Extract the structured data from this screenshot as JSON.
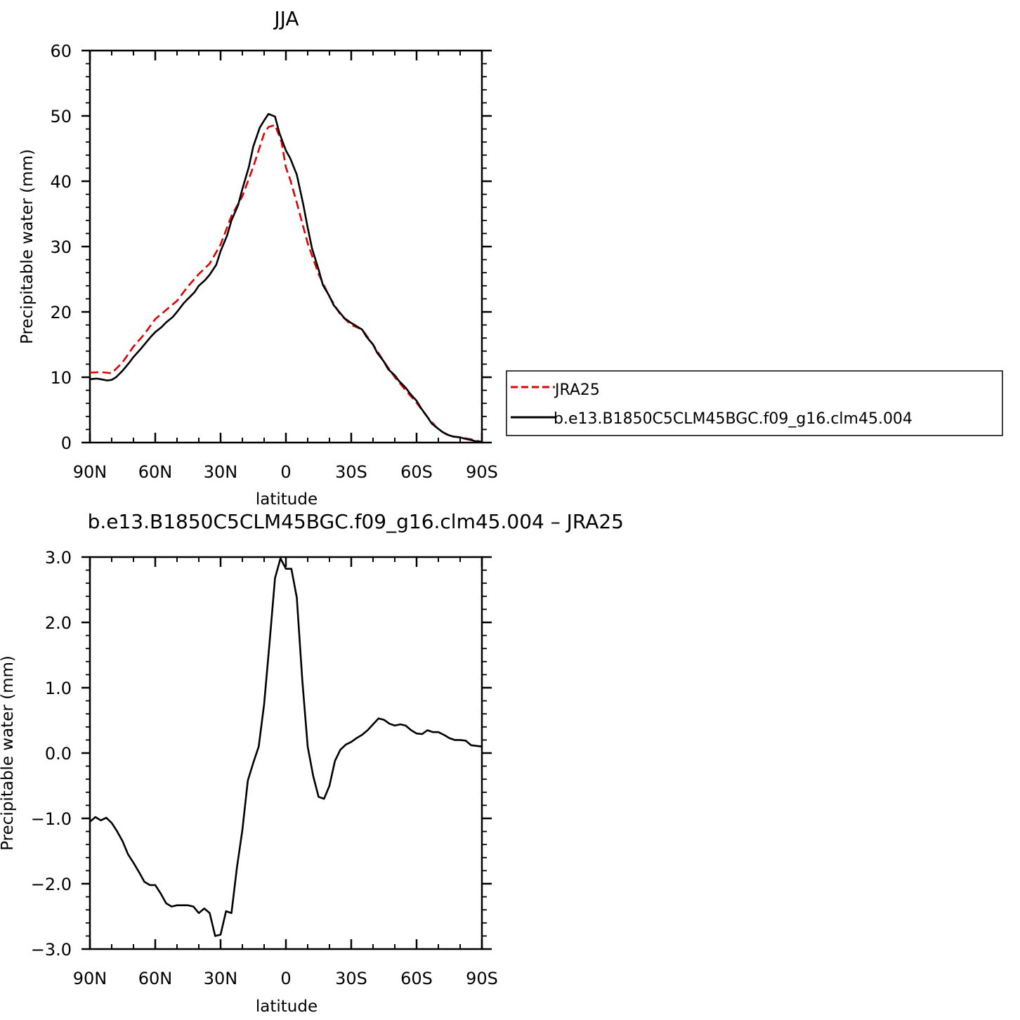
{
  "chart_data": [
    {
      "type": "line",
      "title": "JJA",
      "xlabel": "latitude",
      "ylabel": "Precipitable water (mm)",
      "xlim": [
        90,
        -90
      ],
      "ylim": [
        0,
        60
      ],
      "xticks": [
        90,
        60,
        30,
        0,
        -30,
        -60,
        -90
      ],
      "xtick_labels": [
        "90N",
        "60N",
        "30N",
        "0",
        "30S",
        "60S",
        "90S"
      ],
      "yticks": [
        0,
        10,
        20,
        30,
        40,
        50,
        60
      ],
      "ytick_labels": [
        "0",
        "10",
        "20",
        "30",
        "40",
        "50",
        "60"
      ],
      "legend": {
        "placement": "right",
        "entries": [
          "JRA25",
          "b.e13.B1850C5CLM45BGC.f09_g16.clm45.004"
        ]
      },
      "series": [
        {
          "name": "JRA25",
          "color": "#e00000",
          "style": "dashed",
          "x": [
            90,
            85,
            80,
            75,
            70,
            65,
            60,
            55,
            50,
            45,
            40,
            35,
            30,
            25,
            20,
            15,
            10,
            8,
            5,
            2,
            0,
            -2,
            -5,
            -10,
            -15,
            -20,
            -25,
            -30,
            -35,
            -40,
            -45,
            -50,
            -55,
            -60,
            -65,
            -70,
            -75,
            -80,
            -85,
            -90
          ],
          "y": [
            10.7,
            10.8,
            10.6,
            12.3,
            14.7,
            16.6,
            18.9,
            20.3,
            21.7,
            23.9,
            25.8,
            27.4,
            30.3,
            34.7,
            37.7,
            42.2,
            47.3,
            48.3,
            48.6,
            46.0,
            42.1,
            40.2,
            36.7,
            30.5,
            25.8,
            22.3,
            19.6,
            18.0,
            17.3,
            15.0,
            12.4,
            10.0,
            8.0,
            6.1,
            3.9,
            2.0,
            1.0,
            0.8,
            0.5,
            0.1
          ]
        },
        {
          "name": "b.e13.B1850C5CLM45BGC.f09_g16.clm45.004",
          "color": "#000000",
          "style": "solid",
          "x": [
            90,
            87,
            85,
            82,
            80,
            78,
            75,
            72,
            70,
            67,
            65,
            62,
            60,
            57,
            55,
            52,
            50,
            47,
            45,
            42,
            40,
            37,
            35,
            32,
            30,
            27,
            25,
            22,
            20,
            17,
            15,
            12,
            10,
            8,
            5,
            3,
            0,
            -2,
            -5,
            -8,
            -10,
            -12,
            -15,
            -17,
            -20,
            -22,
            -25,
            -27,
            -30,
            -32,
            -35,
            -37,
            -40,
            -42,
            -45,
            -47,
            -50,
            -52,
            -55,
            -57,
            -60,
            -62,
            -65,
            -67,
            -70,
            -72,
            -75,
            -77,
            -80,
            -82,
            -85,
            -87,
            -90
          ],
          "y": [
            9.7,
            9.8,
            9.7,
            9.5,
            9.6,
            10.0,
            11.0,
            12.2,
            13.1,
            14.2,
            15.0,
            16.2,
            16.9,
            17.7,
            18.4,
            19.2,
            20.0,
            21.3,
            22.0,
            23.0,
            24.0,
            24.9,
            25.7,
            27.2,
            29.3,
            31.7,
            34.0,
            36.3,
            38.8,
            42.2,
            45.3,
            48.2,
            49.3,
            50.3,
            49.9,
            47.4,
            44.7,
            43.5,
            41.0,
            36.4,
            32.9,
            29.7,
            26.5,
            24.1,
            22.4,
            21.0,
            19.8,
            19.0,
            18.3,
            17.9,
            17.3,
            16.2,
            15.0,
            13.7,
            12.4,
            11.2,
            10.3,
            9.4,
            8.4,
            7.5,
            6.4,
            5.3,
            3.9,
            2.9,
            2.1,
            1.6,
            1.1,
            0.9,
            0.8,
            0.6,
            0.4,
            0.2,
            0.1
          ]
        }
      ]
    },
    {
      "type": "line",
      "title": "b.e13.B1850C5CLM45BGC.f09_g16.clm45.004 – JRA25",
      "xlabel": "latitude",
      "ylabel": "Precipitable water (mm)",
      "xlim": [
        90,
        -90
      ],
      "ylim": [
        -3.0,
        3.0
      ],
      "xticks": [
        90,
        60,
        30,
        0,
        -30,
        -60,
        -90
      ],
      "xtick_labels": [
        "90N",
        "60N",
        "30N",
        "0",
        "30S",
        "60S",
        "90S"
      ],
      "yticks": [
        -3.0,
        -2.0,
        -1.0,
        0.0,
        1.0,
        2.0,
        3.0
      ],
      "ytick_labels": [
        "−3.0",
        "−2.0",
        "−1.0",
        "0.0",
        "1.0",
        "2.0",
        "3.0"
      ],
      "series": [
        {
          "color": "#000000",
          "style": "solid",
          "x": [
            90,
            87.5,
            85,
            82.5,
            80,
            77.5,
            75,
            72.5,
            70,
            67.5,
            65,
            62.5,
            60,
            57.5,
            55,
            52.5,
            50,
            47.5,
            45,
            42.5,
            40,
            37.5,
            35,
            32.5,
            30,
            27.5,
            25,
            22.5,
            20,
            17.5,
            15,
            12.5,
            10,
            7.5,
            5,
            2.5,
            0,
            -2.5,
            -5,
            -7.5,
            -10,
            -12.5,
            -15,
            -17.5,
            -20,
            -22.5,
            -25,
            -27.5,
            -30,
            -32.5,
            -35,
            -37.5,
            -40,
            -42.5,
            -45,
            -47.5,
            -50,
            -52.5,
            -55,
            -57.5,
            -60,
            -62.5,
            -65,
            -67.5,
            -70,
            -72.5,
            -75,
            -77.5,
            -80,
            -82.5,
            -85,
            -87.5,
            -90
          ],
          "y": [
            -1.05,
            -0.98,
            -1.03,
            -0.99,
            -1.07,
            -1.2,
            -1.35,
            -1.55,
            -1.68,
            -1.82,
            -1.97,
            -2.02,
            -2.02,
            -2.15,
            -2.3,
            -2.35,
            -2.33,
            -2.33,
            -2.33,
            -2.35,
            -2.45,
            -2.38,
            -2.45,
            -2.8,
            -2.78,
            -2.42,
            -2.45,
            -1.75,
            -1.18,
            -0.42,
            -0.15,
            0.1,
            0.75,
            1.7,
            2.68,
            2.98,
            2.82,
            2.82,
            2.38,
            1.12,
            0.1,
            -0.35,
            -0.67,
            -0.7,
            -0.5,
            -0.12,
            0.05,
            0.13,
            0.17,
            0.23,
            0.28,
            0.35,
            0.44,
            0.53,
            0.51,
            0.45,
            0.42,
            0.44,
            0.42,
            0.35,
            0.3,
            0.29,
            0.35,
            0.32,
            0.32,
            0.28,
            0.23,
            0.2,
            0.2,
            0.19,
            0.12,
            0.11,
            0.1
          ]
        }
      ]
    }
  ]
}
